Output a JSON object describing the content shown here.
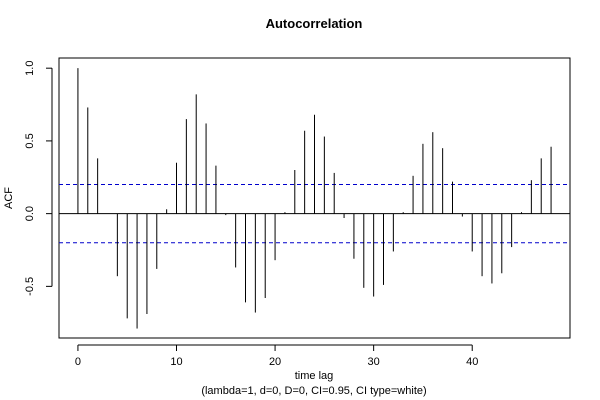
{
  "chart_data": {
    "type": "bar",
    "title": "Autocorrelation",
    "xlabel": "time lag",
    "subtitle": "(lambda=1, d=0, D=0, CI=0.95, CI type=white)",
    "ylabel": "ACF",
    "xlim": [
      -1.92,
      49.92
    ],
    "ylim": [
      -0.855,
      1.07
    ],
    "xticks": [
      0,
      10,
      20,
      30,
      40
    ],
    "yticks": [
      -0.5,
      0.0,
      0.5,
      1.0
    ],
    "ytick_labels": [
      "-0.5",
      "0.0",
      "0.5",
      "1.0"
    ],
    "ci": [
      0.2,
      -0.2
    ],
    "ci_color": "#0000cc",
    "x": [
      0,
      1,
      2,
      3,
      4,
      5,
      6,
      7,
      8,
      9,
      10,
      11,
      12,
      13,
      14,
      15,
      16,
      17,
      18,
      19,
      20,
      21,
      22,
      23,
      24,
      25,
      26,
      27,
      28,
      29,
      30,
      31,
      32,
      33,
      34,
      35,
      36,
      37,
      38,
      39,
      40,
      41,
      42,
      43,
      44,
      45,
      46,
      47,
      48
    ],
    "values": [
      1.0,
      0.73,
      0.38,
      0.0,
      -0.43,
      -0.72,
      -0.79,
      -0.69,
      -0.38,
      0.03,
      0.35,
      0.65,
      0.82,
      0.62,
      0.33,
      -0.01,
      -0.37,
      -0.61,
      -0.68,
      -0.58,
      -0.32,
      0.01,
      0.3,
      0.57,
      0.68,
      0.53,
      0.28,
      -0.03,
      -0.31,
      -0.51,
      -0.57,
      -0.49,
      -0.26,
      0.01,
      0.26,
      0.48,
      0.56,
      0.45,
      0.22,
      -0.02,
      -0.26,
      -0.43,
      -0.48,
      -0.41,
      -0.23,
      0.01,
      0.23,
      0.38,
      0.46
    ]
  }
}
